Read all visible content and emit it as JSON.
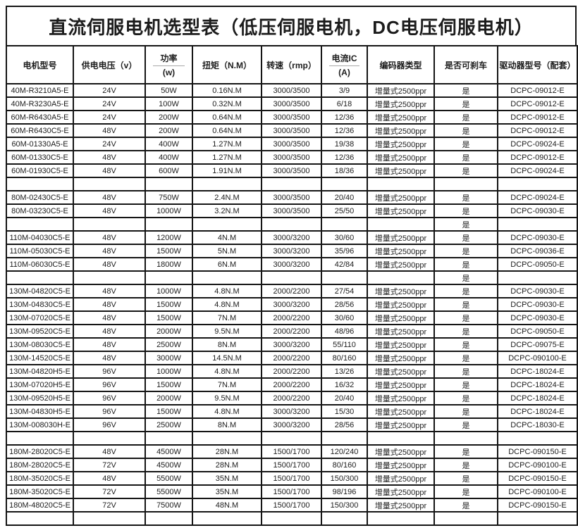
{
  "title": "直流伺服电机选型表（低压伺服电机，DC电压伺服电机）",
  "colors": {
    "background": "#ffffff",
    "border": "#151515",
    "text": "#1c1c1c",
    "header_divider": "#a8a8a8"
  },
  "table": {
    "headers": [
      {
        "line1": "电机型号",
        "line2": ""
      },
      {
        "line1": "供电电压（v）",
        "line2": ""
      },
      {
        "line1": "功率",
        "line2": "(w)"
      },
      {
        "line1": "扭矩（N.M）",
        "line2": ""
      },
      {
        "line1": "转速（rmp）",
        "line2": ""
      },
      {
        "line1": "电流IC",
        "line2": "(A)"
      },
      {
        "line1": "编码器类型",
        "line2": ""
      },
      {
        "line1": "是否可刹车",
        "line2": ""
      },
      {
        "line1": "驱动器型号（配套）",
        "line2": ""
      }
    ],
    "rows": [
      [
        "40M-R3210A5-E",
        "24V",
        "50W",
        "0.16N.M",
        "3000/3500",
        "3/9",
        "增量式2500ppr",
        "是",
        "DCPC-09012-E"
      ],
      [
        "40M-R3230A5-E",
        "24V",
        "100W",
        "0.32N.M",
        "3000/3500",
        "6/18",
        "增量式2500ppr",
        "是",
        "DCPC-09012-E"
      ],
      [
        "60M-R6430A5-E",
        "24V",
        "200W",
        "0.64N.M",
        "3000/3500",
        "12/36",
        "增量式2500ppr",
        "是",
        "DCPC-09012-E"
      ],
      [
        "60M-R6430C5-E",
        "48V",
        "200W",
        "0.64N.M",
        "3000/3500",
        "12/36",
        "增量式2500ppr",
        "是",
        "DCPC-09012-E"
      ],
      [
        "60M-01330A5-E",
        "24V",
        "400W",
        "1.27N.M",
        "3000/3500",
        "19/38",
        "增量式2500ppr",
        "是",
        "DCPC-09024-E"
      ],
      [
        "60M-01330C5-E",
        "48V",
        "400W",
        "1.27N.M",
        "3000/3500",
        "12/36",
        "增量式2500ppr",
        "是",
        "DCPC-09012-E"
      ],
      [
        "60M-01930C5-E",
        "48V",
        "600W",
        "1.91N.M",
        "3000/3500",
        "18/36",
        "增量式2500ppr",
        "是",
        "DCPC-09024-E"
      ],
      [
        "",
        "",
        "",
        "",
        "",
        "",
        "",
        "",
        ""
      ],
      [
        "80M-02430C5-E",
        "48V",
        "750W",
        "2.4N.M",
        "3000/3500",
        "20/40",
        "增量式2500ppr",
        "是",
        "DCPC-09024-E"
      ],
      [
        "80M-03230C5-E",
        "48V",
        "1000W",
        "3.2N.M",
        "3000/3500",
        "25/50",
        "增量式2500ppr",
        "是",
        "DCPC-09030-E"
      ],
      [
        "",
        "",
        "",
        "",
        "",
        "",
        "",
        "是",
        ""
      ],
      [
        "110M-04030C5-E",
        "48V",
        "1200W",
        "4N.M",
        "3000/3200",
        "30/60",
        "增量式2500ppr",
        "是",
        "DCPC-09030-E"
      ],
      [
        "110M-05030C5-E",
        "48V",
        "1500W",
        "5N.M",
        "3000/3200",
        "35/96",
        "增量式2500ppr",
        "是",
        "DCPC-09036-E"
      ],
      [
        "110M-06030C5-E",
        "48V",
        "1800W",
        "6N.M",
        "3000/3200",
        "42/84",
        "增量式2500ppr",
        "是",
        "DCPC-09050-E"
      ],
      [
        "",
        "",
        "",
        "",
        "",
        "",
        "",
        "是",
        ""
      ],
      [
        "130M-04820C5-E",
        "48V",
        "1000W",
        "4.8N.M",
        "2000/2200",
        "27/54",
        "增量式2500ppr",
        "是",
        "DCPC-09030-E"
      ],
      [
        "130M-04830C5-E",
        "48V",
        "1500W",
        "4.8N.M",
        "3000/3200",
        "28/56",
        "增量式2500ppr",
        "是",
        "DCPC-09030-E"
      ],
      [
        "130M-07020C5-E",
        "48V",
        "1500W",
        "7N.M",
        "2000/2200",
        "30/60",
        "增量式2500ppr",
        "是",
        "DCPC-09030-E"
      ],
      [
        "130M-09520C5-E",
        "48V",
        "2000W",
        "9.5N.M",
        "2000/2200",
        "48/96",
        "增量式2500ppr",
        "是",
        "DCPC-09050-E"
      ],
      [
        "130M-08030C5-E",
        "48V",
        "2500W",
        "8N.M",
        "3000/3200",
        "55/110",
        "增量式2500ppr",
        "是",
        "DCPC-09075-E"
      ],
      [
        "130M-14520C5-E",
        "48V",
        "3000W",
        "14.5N.M",
        "2000/2200",
        "80/160",
        "增量式2500ppr",
        "是",
        "DCPC-090100-E"
      ],
      [
        "130M-04820H5-E",
        "96V",
        "1000W",
        "4.8N.M",
        "2000/2200",
        "13/26",
        "增量式2500ppr",
        "是",
        "DCPC-18024-E"
      ],
      [
        "130M-07020H5-E",
        "96V",
        "1500W",
        "7N.M",
        "2000/2200",
        "16/32",
        "增量式2500ppr",
        "是",
        "DCPC-18024-E"
      ],
      [
        "130M-09520H5-E",
        "96V",
        "2000W",
        "9.5N.M",
        "2000/2200",
        "20/40",
        "增量式2500ppr",
        "是",
        "DCPC-18024-E"
      ],
      [
        "130M-04830H5-E",
        "96V",
        "1500W",
        "4.8N.M",
        "3000/3200",
        "15/30",
        "增量式2500ppr",
        "是",
        "DCPC-18024-E"
      ],
      [
        "130M-008030H-E",
        "96V",
        "2500W",
        "8N.M",
        "3000/3200",
        "28/56",
        "增量式2500ppr",
        "是",
        "DCPC-18030-E"
      ],
      [
        "",
        "",
        "",
        "",
        "",
        "",
        "",
        "",
        ""
      ],
      [
        "180M-28020C5-E",
        "48V",
        "4500W",
        "28N.M",
        "1500/1700",
        "120/240",
        "增量式2500ppr",
        "是",
        "DCPC-090150-E"
      ],
      [
        "180M-28020C5-E",
        "72V",
        "4500W",
        "28N.M",
        "1500/1700",
        "80/160",
        "增量式2500ppr",
        "是",
        "DCPC-090100-E"
      ],
      [
        "180M-35020C5-E",
        "48V",
        "5500W",
        "35N.M",
        "1500/1700",
        "150/300",
        "增量式2500ppr",
        "是",
        "DCPC-090150-E"
      ],
      [
        "180M-35020C5-E",
        "72V",
        "5500W",
        "35N.M",
        "1500/1700",
        "98/196",
        "增量式2500ppr",
        "是",
        "DCPC-090100-E"
      ],
      [
        "180M-48020C5-E",
        "72V",
        "7500W",
        "48N.M",
        "1500/1700",
        "150/300",
        "增量式2500ppr",
        "是",
        "DCPC-090150-E"
      ],
      [
        "",
        "",
        "",
        "",
        "",
        "",
        "",
        "",
        ""
      ]
    ]
  }
}
